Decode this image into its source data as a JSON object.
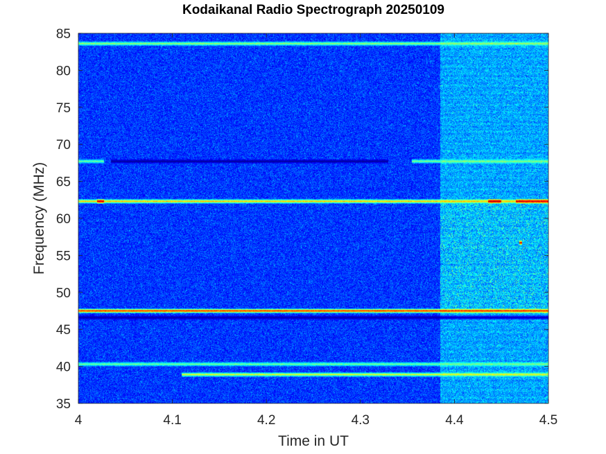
{
  "chart_data": {
    "type": "heatmap",
    "title": "Kodaikanal Radio Spectrograph  20250109",
    "xlabel": "Time in UT",
    "ylabel": "Frequency (MHz)",
    "xlim": [
      4.0,
      4.5
    ],
    "ylim": [
      35,
      85
    ],
    "xticks": [
      {
        "value": 4.0,
        "label": "4"
      },
      {
        "value": 4.1,
        "label": "4.1"
      },
      {
        "value": 4.2,
        "label": "4.2"
      },
      {
        "value": 4.3,
        "label": "4.3"
      },
      {
        "value": 4.4,
        "label": "4.4"
      },
      {
        "value": 4.5,
        "label": "4.5"
      }
    ],
    "yticks": [
      {
        "value": 35,
        "label": "35"
      },
      {
        "value": 40,
        "label": "40"
      },
      {
        "value": 45,
        "label": "45"
      },
      {
        "value": 50,
        "label": "50"
      },
      {
        "value": 55,
        "label": "55"
      },
      {
        "value": 60,
        "label": "60"
      },
      {
        "value": 65,
        "label": "65"
      },
      {
        "value": 70,
        "label": "70"
      },
      {
        "value": 75,
        "label": "75"
      },
      {
        "value": 80,
        "label": "80"
      },
      {
        "value": 85,
        "label": "85"
      }
    ],
    "colormap": "jet",
    "grid": false,
    "enhanced_background_start_ut": 4.385,
    "features": [
      {
        "kind": "bright_line",
        "freq_mhz": 83.6,
        "ut_start": 4.0,
        "ut_end": 4.5,
        "intensity": 0.55
      },
      {
        "kind": "bright_line",
        "freq_mhz": 67.7,
        "ut_start": 4.0,
        "ut_end": 4.027,
        "intensity": 0.5
      },
      {
        "kind": "dark_line",
        "freq_mhz": 67.7,
        "ut_start": 4.035,
        "ut_end": 4.33,
        "intensity": 0.02
      },
      {
        "kind": "bright_line",
        "freq_mhz": 67.7,
        "ut_start": 4.355,
        "ut_end": 4.5,
        "intensity": 0.52
      },
      {
        "kind": "bright_line",
        "freq_mhz": 62.3,
        "ut_start": 4.0,
        "ut_end": 4.5,
        "intensity": 0.7
      },
      {
        "kind": "hot_spot",
        "freq_mhz": 62.3,
        "ut_start": 4.02,
        "ut_end": 4.027,
        "intensity": 0.93
      },
      {
        "kind": "hot_spot",
        "freq_mhz": 62.3,
        "ut_start": 4.436,
        "ut_end": 4.45,
        "intensity": 0.96
      },
      {
        "kind": "hot_spot",
        "freq_mhz": 62.3,
        "ut_start": 4.465,
        "ut_end": 4.5,
        "intensity": 0.92
      },
      {
        "kind": "bright_line",
        "freq_mhz": 47.5,
        "ut_start": 4.0,
        "ut_end": 4.5,
        "intensity": 0.88
      },
      {
        "kind": "dark_line",
        "freq_mhz": 46.6,
        "ut_start": 4.0,
        "ut_end": 4.5,
        "intensity": 0.04
      },
      {
        "kind": "bright_line",
        "freq_mhz": 40.3,
        "ut_start": 4.0,
        "ut_end": 4.5,
        "intensity": 0.5
      },
      {
        "kind": "bright_line",
        "freq_mhz": 38.9,
        "ut_start": 4.11,
        "ut_end": 4.5,
        "intensity": 0.62
      },
      {
        "kind": "hot_spot",
        "freq_mhz": 56.7,
        "ut_start": 4.469,
        "ut_end": 4.472,
        "intensity": 0.97
      }
    ]
  }
}
